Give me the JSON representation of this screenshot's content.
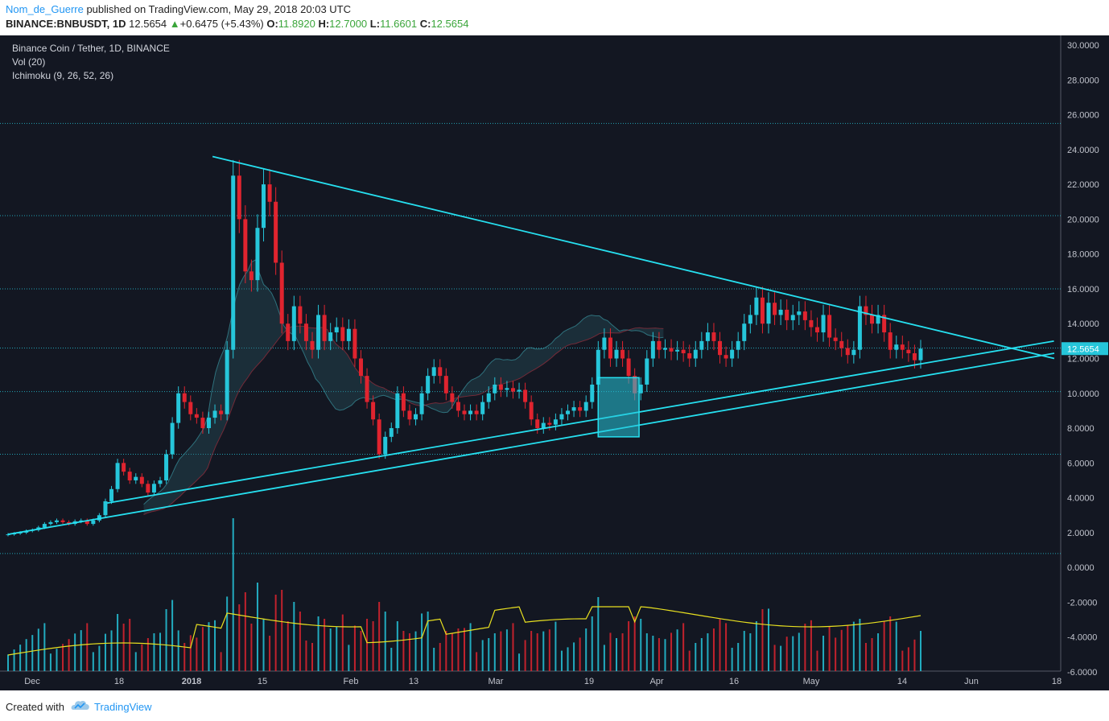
{
  "header": {
    "author": "Nom_de_Guerre",
    "published": " published on TradingView.com, May 29, 2018 20:03 UTC",
    "symbol": "BINANCE:BNBUSDT, 1D",
    "last": "12.5654",
    "change": "+0.6475 (+5.43%)",
    "o_label": "O:",
    "o": "11.8920",
    "h_label": "H:",
    "h": "12.7000",
    "l_label": "L:",
    "l": "11.6601",
    "c_label": "C:",
    "c": "12.5654"
  },
  "legend": {
    "title": "Binance Coin / Tether, 1D, BINANCE",
    "vol": "Vol (20)",
    "ichimoku": "Ichimoku (9, 26, 52, 26)"
  },
  "footer": {
    "created": "Created with",
    "brand": "TradingView"
  },
  "chart_data": {
    "type": "candlestick",
    "title": "Binance Coin / Tether, 1D, BINANCE",
    "price_axis": {
      "ticks": [
        "30.0000",
        "28.0000",
        "26.0000",
        "24.0000",
        "22.0000",
        "20.0000",
        "18.0000",
        "16.0000",
        "14.0000",
        "12.0000",
        "10.0000",
        "8.0000",
        "6.0000",
        "4.0000",
        "2.0000",
        "0.0000",
        "-2.0000",
        "-4.0000",
        "-6.0000"
      ],
      "range": [
        -6.5,
        30.5
      ]
    },
    "time_axis": {
      "ticks": [
        "Dec",
        "18",
        "2018",
        "15",
        "Feb",
        "13",
        "Mar",
        "19",
        "Apr",
        "16",
        "May",
        "14",
        "Jun",
        "18"
      ]
    },
    "last_price_label": "12.5654",
    "horizontal_levels": [
      25.5,
      20.2,
      16.0,
      12.6,
      10.1,
      6.5,
      0.8
    ],
    "closes": [
      1.9,
      1.95,
      2.0,
      2.1,
      2.15,
      2.3,
      2.5,
      2.6,
      2.7,
      2.6,
      2.5,
      2.65,
      2.7,
      2.5,
      2.7,
      3.0,
      3.8,
      4.5,
      6.0,
      5.5,
      5.0,
      5.2,
      4.8,
      4.3,
      4.8,
      5.0,
      6.5,
      8.3,
      10.0,
      9.5,
      8.8,
      8.6,
      8.0,
      8.6,
      9.0,
      8.8,
      12.5,
      22.5,
      20.0,
      17.0,
      16.5,
      19.5,
      22.0,
      21.0,
      17.5,
      14.0,
      13.0,
      15.0,
      14.0,
      13.0,
      12.5,
      14.5,
      13.0,
      13.5,
      13.8,
      13.0,
      13.7,
      12.0,
      11.0,
      9.5,
      8.5,
      6.5,
      7.5,
      8.0,
      10.0,
      9.0,
      8.5,
      8.8,
      10.0,
      11.0,
      11.5,
      11.0,
      10.0,
      9.5,
      9.0,
      8.8,
      9.0,
      8.8,
      9.5,
      10.0,
      10.5,
      10.2,
      10.3,
      10.1,
      10.2,
      9.5,
      8.5,
      8.0,
      8.3,
      8.2,
      8.5,
      8.8,
      9.0,
      9.2,
      9.0,
      9.5,
      10.5,
      12.5,
      13.2,
      12.0,
      12.5,
      12.0,
      11.0,
      10.0,
      10.5,
      12.0,
      13.0,
      12.5,
      12.6,
      12.4,
      12.5,
      12.3,
      12.0,
      12.5,
      13.0,
      13.5,
      13.0,
      12.2,
      12.0,
      12.5,
      13.0,
      14.0,
      14.5,
      15.5,
      14.0,
      15.2,
      14.5,
      14.8,
      14.2,
      14.5,
      14.7,
      14.2,
      13.8,
      13.5,
      14.5,
      13.2,
      13.0,
      12.6,
      12.2,
      12.5,
      15.0,
      14.5,
      14.0,
      14.5,
      13.5,
      12.5,
      12.8,
      12.5,
      12.3,
      11.9,
      12.5654
    ],
    "trendlines": [
      {
        "from": [
          "Jan 5",
          23.6
        ],
        "to": [
          "Jun 7",
          12.0
        ]
      },
      {
        "from": [
          "Dec 18",
          3.7
        ],
        "to": [
          "May 29",
          13.0
        ]
      },
      {
        "from": [
          "Dec 1",
          1.9
        ],
        "to": [
          "Jun 2",
          12.3
        ]
      }
    ],
    "rectangle": {
      "from": [
        "Mar 12",
        10.9
      ],
      "to": [
        "Mar 19",
        7.5
      ]
    },
    "volume_sma": "yellow",
    "colors": {
      "up": "#26c6da",
      "down": "#e0242f",
      "background": "#131722",
      "trend": "#26e0f0",
      "sma": "#e8e020",
      "level": "#26c6da"
    }
  }
}
